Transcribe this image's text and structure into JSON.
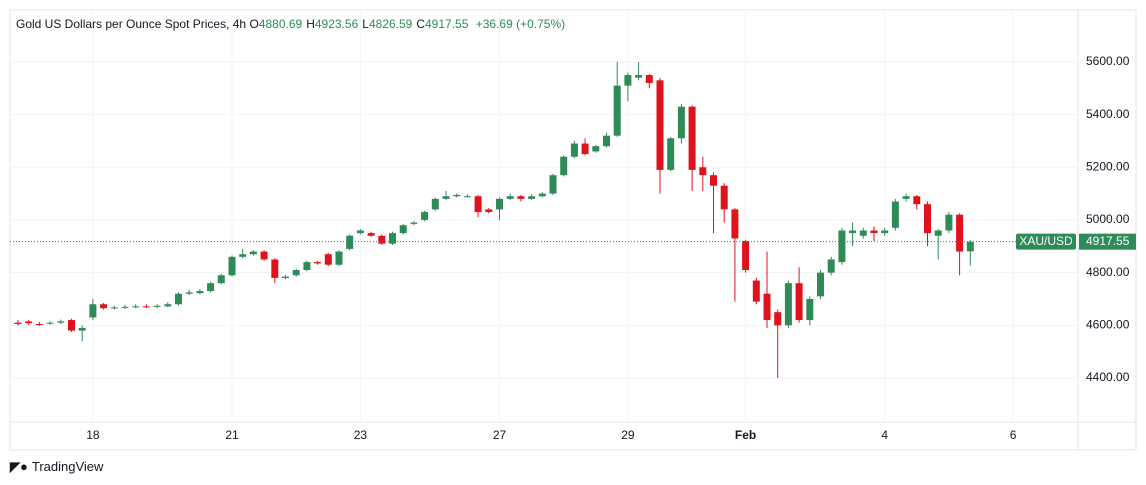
{
  "chart_data": {
    "type": "candlestick",
    "title": "Gold US Dollars per Ounce Spot Prices, 4h",
    "ohlc_keys": [
      "O",
      "H",
      "L",
      "C"
    ],
    "change": "+36.69 (+0.75%)",
    "symbol": "XAU/USD",
    "brand": "TradingView",
    "up_color": "#2e8b57",
    "down_color": "#e0121b",
    "categories": [
      null,
      null,
      null,
      null,
      null,
      null,
      null,
      "18",
      null,
      null,
      null,
      null,
      null,
      null,
      null,
      null,
      null,
      null,
      null,
      null,
      "21",
      null,
      null,
      null,
      null,
      null,
      null,
      null,
      null,
      null,
      null,
      null,
      "23",
      null,
      null,
      null,
      null,
      null,
      null,
      null,
      null,
      null,
      null,
      null,
      null,
      "27",
      null,
      null,
      null,
      null,
      null,
      null,
      null,
      null,
      null,
      null,
      null,
      "29",
      null,
      null,
      null,
      null,
      null,
      null,
      null,
      null,
      null,
      null,
      "Feb",
      null,
      null,
      null,
      null,
      null,
      null,
      null,
      null,
      null,
      null,
      null,
      null,
      "4",
      null,
      null,
      null,
      null,
      null,
      null,
      null,
      null,
      null,
      null,
      null,
      "6",
      null,
      null,
      null,
      null,
      null
    ],
    "open": [
      4610,
      4615,
      4605,
      4608,
      4610,
      4620,
      4580,
      4630,
      4680,
      4665,
      4668,
      4670,
      4672,
      4670,
      4672,
      4680,
      4720,
      4722,
      4730,
      4760,
      4790,
      4860,
      4870,
      4880,
      4850,
      4780,
      4790,
      4810,
      4840,
      4870,
      4830,
      4890,
      4950,
      4950,
      4940,
      4910,
      4950,
      4985,
      5000,
      5040,
      5080,
      5090,
      5090,
      5090,
      5040,
      5040,
      5080,
      5090,
      5080,
      5090,
      5100,
      5170,
      5240,
      5290,
      5260,
      5280,
      5320,
      5510,
      5540,
      5550,
      5530,
      5190,
      5310,
      5430,
      5200,
      5170,
      5130,
      5040,
      4920,
      4770,
      4720,
      4650,
      4600,
      4760,
      4620,
      4710,
      4800,
      4840,
      4950,
      4940,
      4960,
      4950,
      4970,
      5080,
      5090,
      5060,
      4940,
      4960,
      5020,
      4880.69,
      null,
      null,
      null,
      null,
      null,
      null,
      null,
      null,
      null
    ],
    "high": [
      4620,
      4620,
      4612,
      4615,
      4622,
      4625,
      4600,
      4700,
      4685,
      4675,
      4678,
      4680,
      4680,
      4680,
      4688,
      4725,
      4735,
      4738,
      4765,
      4795,
      4865,
      4890,
      4885,
      4885,
      4855,
      4790,
      4815,
      4845,
      4845,
      4875,
      4885,
      4945,
      4965,
      4955,
      4945,
      4955,
      4985,
      4995,
      5035,
      5085,
      5110,
      5100,
      5098,
      5095,
      5045,
      5085,
      5100,
      5095,
      5098,
      5105,
      5175,
      5245,
      5300,
      5310,
      5285,
      5330,
      5600,
      5560,
      5600,
      5555,
      5540,
      5315,
      5440,
      5435,
      5240,
      5180,
      5140,
      5045,
      4925,
      4780,
      4880,
      4660,
      4770,
      4820,
      4710,
      4810,
      4860,
      4970,
      4990,
      4970,
      4975,
      4970,
      5080,
      5100,
      5095,
      5070,
      4965,
      5030,
      5025,
      4923.56,
      null,
      null,
      null,
      null,
      null,
      null,
      null,
      null,
      null
    ],
    "low": [
      4600,
      4600,
      4598,
      4602,
      4605,
      4575,
      4540,
      4620,
      4660,
      4660,
      4662,
      4665,
      4665,
      4665,
      4668,
      4675,
      4715,
      4718,
      4725,
      4755,
      4785,
      4855,
      4865,
      4845,
      4760,
      4775,
      4785,
      4805,
      4830,
      4825,
      4825,
      4885,
      4945,
      4935,
      4905,
      4905,
      4945,
      4980,
      4995,
      5035,
      5075,
      5085,
      5085,
      5010,
      5025,
      5000,
      5075,
      5070,
      5075,
      5085,
      5095,
      5165,
      5235,
      5245,
      5255,
      5275,
      5315,
      5450,
      5530,
      5500,
      5100,
      5185,
      5290,
      5110,
      5110,
      4950,
      4990,
      4690,
      4800,
      4680,
      4590,
      4400,
      4590,
      4610,
      4600,
      4700,
      4790,
      4830,
      4900,
      4930,
      4920,
      4940,
      4960,
      5070,
      5040,
      4900,
      4850,
      4950,
      4790,
      4826.59,
      null,
      null,
      null,
      null,
      null,
      null,
      null,
      null,
      null
    ],
    "close": [
      4605,
      4608,
      4603,
      4610,
      4615,
      4580,
      4590,
      4680,
      4665,
      4668,
      4670,
      4672,
      4670,
      4674,
      4680,
      4720,
      4725,
      4730,
      4760,
      4790,
      4860,
      4870,
      4880,
      4850,
      4780,
      4785,
      4810,
      4840,
      4835,
      4830,
      4880,
      4940,
      4960,
      4940,
      4910,
      4950,
      4980,
      4990,
      5030,
      5080,
      5090,
      5095,
      5090,
      5030,
      5030,
      5080,
      5090,
      5080,
      5090,
      5100,
      5170,
      5240,
      5290,
      5250,
      5280,
      5320,
      5510,
      5550,
      5550,
      5520,
      5190,
      5310,
      5430,
      5190,
      5170,
      5130,
      5040,
      4930,
      4810,
      4690,
      4620,
      4600,
      4760,
      4620,
      4700,
      4800,
      4850,
      4960,
      4960,
      4960,
      4950,
      4960,
      5070,
      5090,
      5060,
      4950,
      4960,
      5020,
      4880,
      4917.55,
      null,
      null,
      null,
      null,
      null,
      null,
      null,
      null,
      null
    ],
    "ylim": [
      4233,
      5797
    ],
    "yticks": [
      {
        "value": 4400,
        "label": "4400.00"
      },
      {
        "value": 4600,
        "label": "4600.00"
      },
      {
        "value": 4800,
        "label": "4800.00"
      },
      {
        "value": 5000,
        "label": "5000.00"
      },
      {
        "value": 5200,
        "label": "5200.00"
      },
      {
        "value": 5400,
        "label": "5400.00"
      },
      {
        "value": 5600,
        "label": "5600.00"
      }
    ],
    "last_price": {
      "value": 4917.55,
      "label": "4917.55"
    },
    "grid": true
  }
}
